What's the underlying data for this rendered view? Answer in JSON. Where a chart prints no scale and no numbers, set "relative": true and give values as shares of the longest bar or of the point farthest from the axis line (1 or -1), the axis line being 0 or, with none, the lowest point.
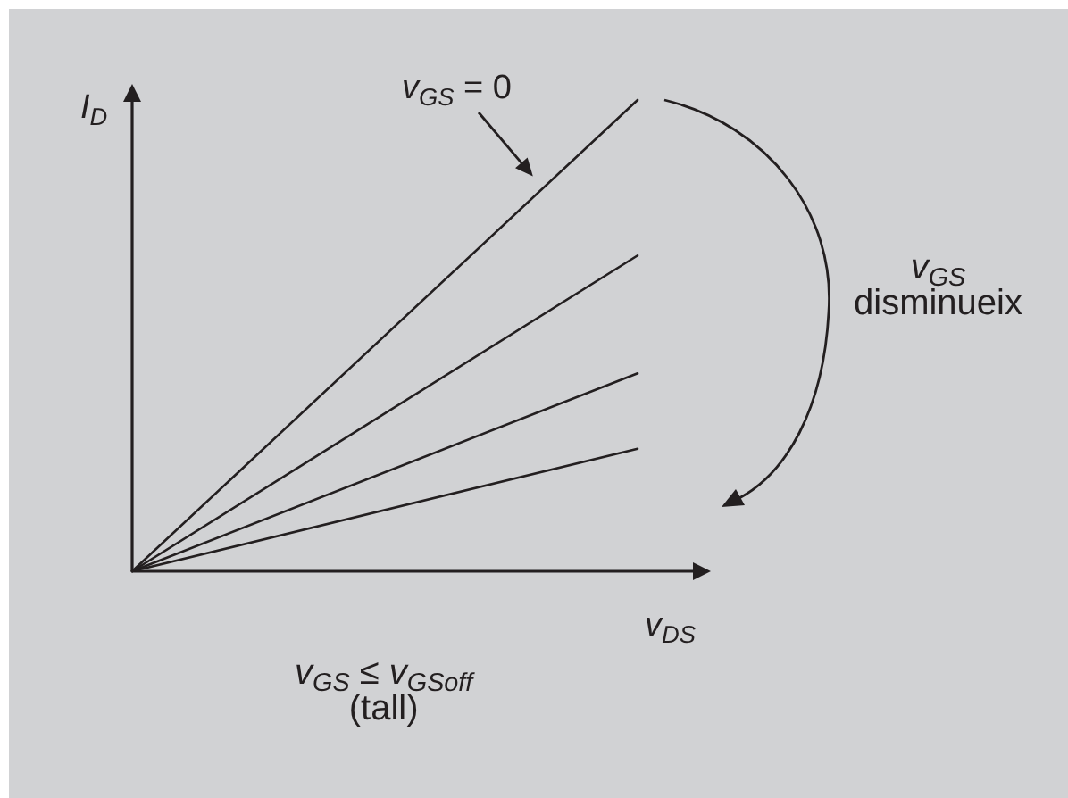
{
  "chart_data": {
    "type": "line",
    "xlabel": "v$_{DS}$",
    "ylabel": "I$_{D}$",
    "annotations": [
      "v$_{GS}$\ndisminueix",
      "v$_{GS}$ ≤ v$_{GSoff}$\n(tall)"
    ],
    "categories": [
      null,
      null
    ],
    "relative": true,
    "marker": "none",
    "line_style": "solid",
    "series": [
      {
        "name": "v$_{GS}$ = 0",
        "color": "#231f20",
        "values": [
          0,
          1
        ]
      },
      {
        "color": "#231f20",
        "values": [
          0,
          0.67
        ]
      },
      {
        "color": "#231f20",
        "values": [
          0,
          0.42
        ]
      },
      {
        "color": "#231f20",
        "values": [
          0,
          0.26
        ]
      }
    ]
  }
}
